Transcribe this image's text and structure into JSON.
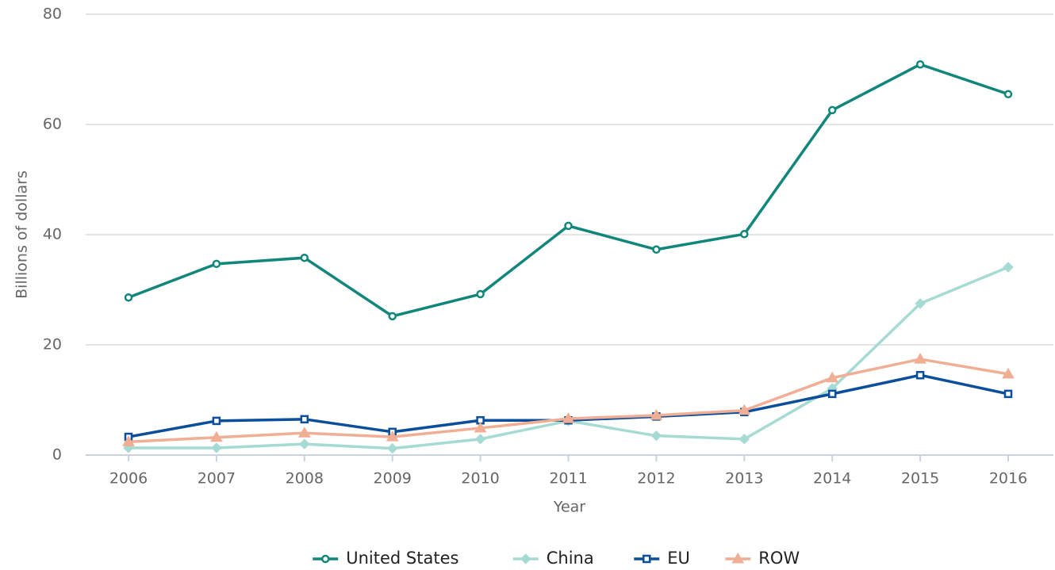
{
  "chart_data": {
    "type": "line",
    "y_label": "Billions of dollars",
    "x_label": "Year",
    "categories": [
      "2006",
      "2007",
      "2008",
      "2009",
      "2010",
      "2011",
      "2012",
      "2013",
      "2014",
      "2015",
      "2016"
    ],
    "series": [
      {
        "name": "United States",
        "color": "#11877c",
        "marker": "circle",
        "values": [
          28.6,
          34.7,
          35.8,
          25.2,
          29.2,
          41.6,
          37.3,
          40.1,
          62.6,
          70.9,
          65.5
        ]
      },
      {
        "name": "China",
        "color": "#a6dbd4",
        "marker": "diamond",
        "values": [
          1.3,
          1.3,
          2.0,
          1.2,
          2.9,
          6.2,
          3.5,
          2.9,
          12.1,
          27.5,
          34.1
        ]
      },
      {
        "name": "EU",
        "color": "#0b4e9b",
        "marker": "square",
        "values": [
          3.3,
          6.2,
          6.5,
          4.2,
          6.3,
          6.3,
          7.0,
          7.8,
          11.1,
          14.5,
          11.1
        ]
      },
      {
        "name": "ROW",
        "color": "#f0ae94",
        "marker": "triangle",
        "values": [
          2.4,
          3.2,
          4.0,
          3.3,
          4.9,
          6.6,
          7.2,
          8.1,
          14.0,
          17.4,
          14.7
        ]
      }
    ],
    "ylim": [
      0,
      80
    ],
    "yticks": [
      0,
      20,
      40,
      60,
      80
    ],
    "grid": true,
    "legend": "bottom"
  }
}
